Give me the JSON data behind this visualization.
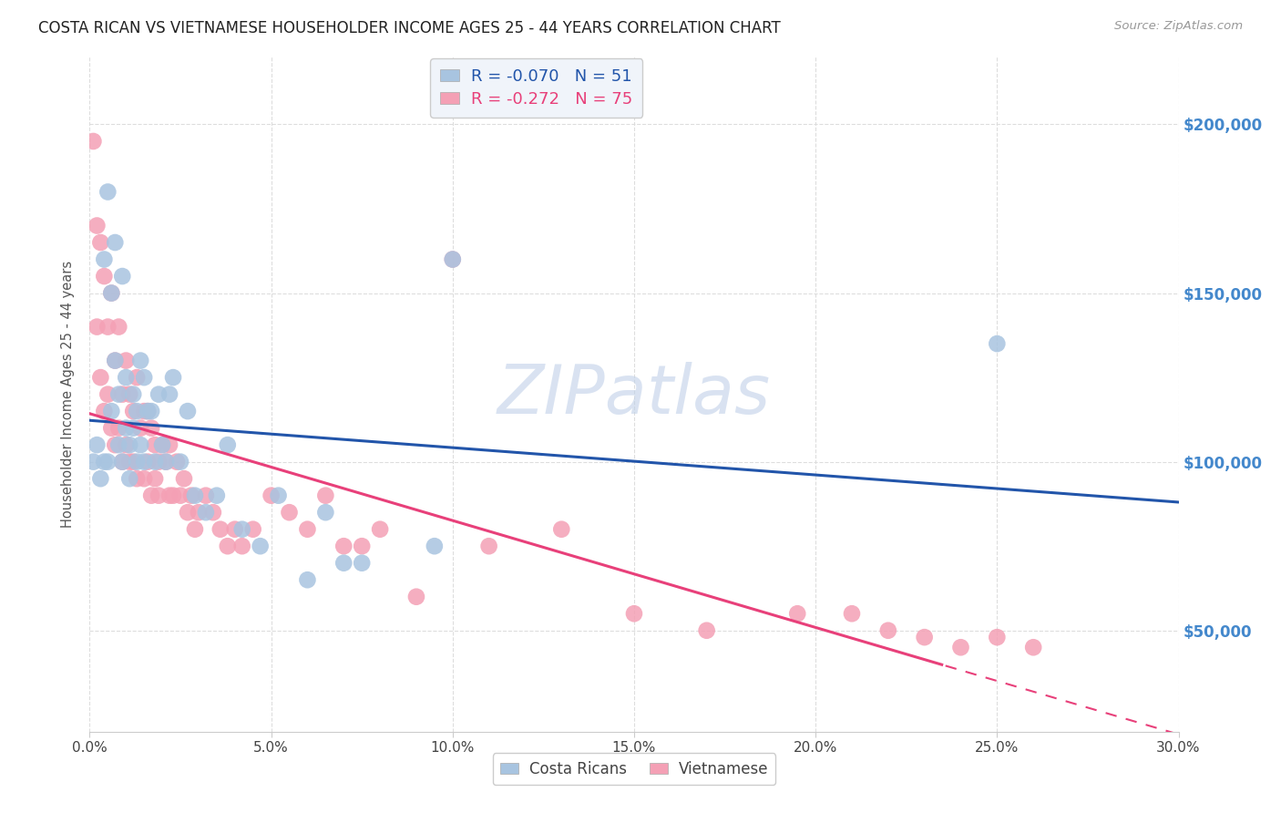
{
  "title": "COSTA RICAN VS VIETNAMESE HOUSEHOLDER INCOME AGES 25 - 44 YEARS CORRELATION CHART",
  "source": "Source: ZipAtlas.com",
  "ylabel": "Householder Income Ages 25 - 44 years",
  "xlabel_ticks": [
    "0.0%",
    "5.0%",
    "10.0%",
    "15.0%",
    "20.0%",
    "25.0%",
    "30.0%"
  ],
  "xlim": [
    0.0,
    0.3
  ],
  "ylim": [
    20000,
    220000
  ],
  "ytick_labels": [
    "$50,000",
    "$100,000",
    "$150,000",
    "$200,000"
  ],
  "ytick_values": [
    50000,
    100000,
    150000,
    200000
  ],
  "xtick_values": [
    0.0,
    0.05,
    0.1,
    0.15,
    0.2,
    0.25,
    0.3
  ],
  "costa_rican_R": "-0.070",
  "costa_rican_N": "51",
  "vietnamese_R": "-0.272",
  "vietnamese_N": "75",
  "costa_rican_color": "#a8c4e0",
  "vietnamese_color": "#f4a0b5",
  "costa_rican_line_color": "#2255aa",
  "vietnamese_line_color": "#e8407a",
  "background_color": "#ffffff",
  "grid_color": "#dddddd",
  "watermark_text": "ZIPatlas",
  "watermark_color": "#c0d0e8",
  "legend_box_color": "#f0f4fa",
  "right_axis_color": "#4488cc",
  "costa_rican_scatter_x": [
    0.001,
    0.002,
    0.003,
    0.004,
    0.004,
    0.005,
    0.005,
    0.006,
    0.006,
    0.007,
    0.007,
    0.008,
    0.008,
    0.009,
    0.009,
    0.01,
    0.01,
    0.011,
    0.011,
    0.012,
    0.012,
    0.013,
    0.013,
    0.014,
    0.014,
    0.015,
    0.015,
    0.016,
    0.017,
    0.018,
    0.019,
    0.02,
    0.021,
    0.022,
    0.023,
    0.025,
    0.027,
    0.029,
    0.032,
    0.035,
    0.038,
    0.042,
    0.047,
    0.052,
    0.06,
    0.065,
    0.07,
    0.075,
    0.1,
    0.25,
    0.095
  ],
  "costa_rican_scatter_y": [
    100000,
    105000,
    95000,
    160000,
    100000,
    180000,
    100000,
    150000,
    115000,
    165000,
    130000,
    105000,
    120000,
    155000,
    100000,
    110000,
    125000,
    105000,
    95000,
    120000,
    110000,
    115000,
    100000,
    130000,
    105000,
    125000,
    100000,
    115000,
    115000,
    100000,
    120000,
    105000,
    100000,
    120000,
    125000,
    100000,
    115000,
    90000,
    85000,
    90000,
    105000,
    80000,
    75000,
    90000,
    65000,
    85000,
    70000,
    70000,
    160000,
    135000,
    75000
  ],
  "vietnamese_scatter_x": [
    0.001,
    0.002,
    0.002,
    0.003,
    0.003,
    0.004,
    0.004,
    0.005,
    0.005,
    0.006,
    0.006,
    0.007,
    0.007,
    0.008,
    0.008,
    0.009,
    0.009,
    0.01,
    0.01,
    0.011,
    0.011,
    0.012,
    0.012,
    0.013,
    0.013,
    0.014,
    0.015,
    0.015,
    0.016,
    0.016,
    0.017,
    0.017,
    0.018,
    0.018,
    0.019,
    0.019,
    0.02,
    0.021,
    0.022,
    0.022,
    0.023,
    0.024,
    0.025,
    0.026,
    0.027,
    0.028,
    0.029,
    0.03,
    0.032,
    0.034,
    0.036,
    0.038,
    0.04,
    0.042,
    0.045,
    0.05,
    0.055,
    0.06,
    0.065,
    0.07,
    0.075,
    0.08,
    0.09,
    0.1,
    0.11,
    0.13,
    0.15,
    0.17,
    0.195,
    0.21,
    0.22,
    0.23,
    0.24,
    0.25,
    0.26
  ],
  "vietnamese_scatter_y": [
    195000,
    170000,
    140000,
    165000,
    125000,
    155000,
    115000,
    140000,
    120000,
    150000,
    110000,
    130000,
    105000,
    140000,
    110000,
    120000,
    100000,
    130000,
    105000,
    120000,
    100000,
    115000,
    100000,
    125000,
    95000,
    110000,
    115000,
    95000,
    115000,
    100000,
    110000,
    90000,
    105000,
    95000,
    100000,
    90000,
    105000,
    100000,
    90000,
    105000,
    90000,
    100000,
    90000,
    95000,
    85000,
    90000,
    80000,
    85000,
    90000,
    85000,
    80000,
    75000,
    80000,
    75000,
    80000,
    90000,
    85000,
    80000,
    90000,
    75000,
    75000,
    80000,
    60000,
    160000,
    75000,
    80000,
    55000,
    50000,
    55000,
    55000,
    50000,
    48000,
    45000,
    48000,
    45000
  ]
}
